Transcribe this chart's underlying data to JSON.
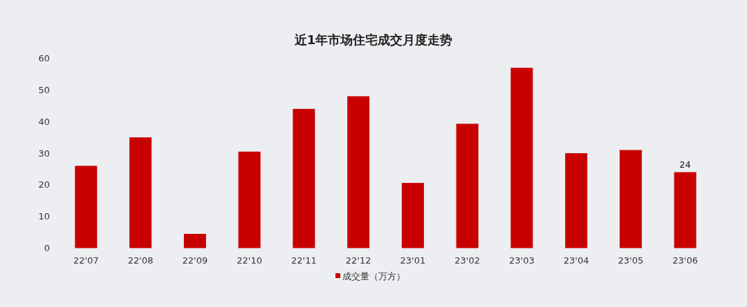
{
  "chart_data": {
    "type": "bar",
    "title": "近1年市场住宅成交月度走势",
    "categories": [
      "22'07",
      "22'08",
      "22'09",
      "22'10",
      "22'11",
      "22'12",
      "23'01",
      "23'02",
      "23'03",
      "23'04",
      "23'05",
      "23'06"
    ],
    "series": [
      {
        "name": "成交量（万方）",
        "color": "#c80000",
        "values": [
          26,
          35,
          4.5,
          30.5,
          44,
          48,
          20.6,
          39.3,
          57,
          30,
          31,
          24
        ],
        "value_labels": [
          null,
          null,
          null,
          null,
          null,
          null,
          null,
          null,
          null,
          null,
          null,
          "24"
        ]
      }
    ],
    "ylim": [
      0,
      60
    ],
    "yticks": [
      0,
      10,
      20,
      30,
      40,
      50,
      60
    ],
    "legend": "bottom"
  }
}
